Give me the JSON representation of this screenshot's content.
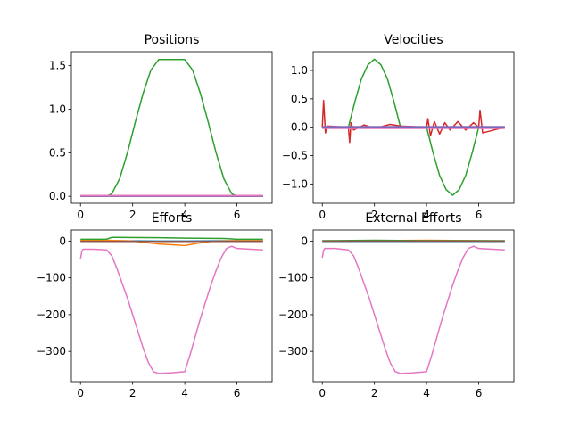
{
  "palette": [
    "#1f77b4",
    "#ff7f0e",
    "#2ca02c",
    "#d62728",
    "#9467bd",
    "#8c564b",
    "#e377c2"
  ],
  "chart_data": [
    {
      "type": "line",
      "title": "Positions",
      "xlim": [
        -0.35,
        7.35
      ],
      "ylim": [
        -0.08,
        1.66
      ],
      "xticks": [
        0,
        2,
        4,
        6
      ],
      "yticks": [
        0.0,
        0.5,
        1.0,
        1.5
      ],
      "ytick_labels": [
        "0.0",
        "0.5",
        "1.0",
        "1.5"
      ],
      "grid": false,
      "series": [
        {
          "color_index": 2,
          "x": [
            0,
            1.0,
            1.2,
            1.5,
            1.8,
            2.1,
            2.4,
            2.7,
            3.0,
            3.3,
            4.0,
            4.3,
            4.6,
            4.9,
            5.2,
            5.5,
            5.8,
            6.0,
            7.0
          ],
          "y": [
            0.0,
            0.0,
            0.03,
            0.2,
            0.5,
            0.85,
            1.18,
            1.45,
            1.57,
            1.57,
            1.57,
            1.45,
            1.18,
            0.85,
            0.5,
            0.2,
            0.03,
            0.0,
            0.0
          ]
        },
        {
          "color_index": 0,
          "x": [
            0,
            7
          ],
          "y": [
            0.005,
            0.005
          ]
        },
        {
          "color_index": 1,
          "x": [
            0,
            7
          ],
          "y": [
            0.0,
            0.0
          ]
        },
        {
          "color_index": 4,
          "x": [
            0,
            7
          ],
          "y": [
            0.0,
            0.0
          ]
        },
        {
          "color_index": 6,
          "x": [
            0,
            7
          ],
          "y": [
            0.01,
            0.01
          ]
        }
      ]
    },
    {
      "type": "line",
      "title": "Velocities",
      "xlim": [
        -0.35,
        7.35
      ],
      "ylim": [
        -1.34,
        1.33
      ],
      "xticks": [
        0,
        2,
        4,
        6
      ],
      "yticks": [
        1.0,
        0.5,
        0.0,
        -0.5,
        -1.0
      ],
      "ytick_labels": [
        "1.0",
        "0.5",
        "0.0",
        "−0.5",
        "−1.0"
      ],
      "grid": false,
      "series": [
        {
          "color_index": 2,
          "x": [
            0,
            1.0,
            1.25,
            1.5,
            1.75,
            2.0,
            2.25,
            2.5,
            2.75,
            3.0,
            4.0,
            4.25,
            4.5,
            4.75,
            5.0,
            5.25,
            5.5,
            5.75,
            6.0,
            7.0
          ],
          "y": [
            0.0,
            0.0,
            0.45,
            0.85,
            1.1,
            1.2,
            1.1,
            0.85,
            0.45,
            0.0,
            0.0,
            -0.45,
            -0.85,
            -1.1,
            -1.2,
            -1.1,
            -0.85,
            -0.45,
            0.0,
            0.0
          ]
        },
        {
          "color_index": 3,
          "x": [
            0,
            0.05,
            0.12,
            0.2,
            1.0,
            1.05,
            1.1,
            1.2,
            1.6,
            2.0,
            2.6,
            3.0,
            4.0,
            4.05,
            4.15,
            4.3,
            4.5,
            4.7,
            4.9,
            5.2,
            5.5,
            5.8,
            6.0,
            6.05,
            6.15,
            7.0
          ],
          "y": [
            0.0,
            0.47,
            -0.1,
            0.02,
            0.0,
            -0.27,
            0.08,
            -0.05,
            0.04,
            -0.02,
            0.05,
            0.02,
            0.0,
            0.15,
            -0.15,
            0.1,
            -0.12,
            0.08,
            -0.05,
            0.1,
            -0.05,
            0.08,
            0.0,
            0.3,
            -0.1,
            0.0
          ]
        },
        {
          "color_index": 0,
          "x": [
            0,
            7
          ],
          "y": [
            0.0,
            0.0
          ]
        },
        {
          "color_index": 6,
          "x": [
            0,
            7
          ],
          "y": [
            -0.02,
            -0.02
          ]
        },
        {
          "color_index": 4,
          "x": [
            0,
            7
          ],
          "y": [
            0.01,
            0.01
          ]
        }
      ]
    },
    {
      "type": "line",
      "title": "Efforts",
      "xlim": [
        -0.35,
        7.35
      ],
      "ylim": [
        -382,
        30
      ],
      "xticks": [
        0,
        2,
        4,
        6
      ],
      "yticks": [
        0,
        -100,
        -200,
        -300
      ],
      "ytick_labels": [
        "0",
        "−100",
        "−200",
        "−300"
      ],
      "grid": false,
      "series": [
        {
          "color_index": 0,
          "x": [
            0,
            1.0,
            3.0,
            4.0,
            6.0,
            7.0
          ],
          "y": [
            1,
            1,
            0,
            0,
            1,
            1
          ]
        },
        {
          "color_index": 1,
          "x": [
            0,
            1.0,
            2.0,
            2.5,
            3.0,
            3.5,
            4.0,
            4.5,
            5.0,
            6.0,
            7.0
          ],
          "y": [
            2,
            2,
            0,
            -4,
            -8,
            -10,
            -12,
            -6,
            -1,
            1,
            1
          ]
        },
        {
          "color_index": 2,
          "x": [
            0,
            1.0,
            1.2,
            3.0,
            4.0,
            5.5,
            6.0,
            7.0
          ],
          "y": [
            5,
            5,
            10,
            9,
            8,
            7,
            5,
            5
          ]
        },
        {
          "color_index": 5,
          "x": [
            0,
            7
          ],
          "y": [
            -1,
            -1
          ]
        },
        {
          "color_index": 6,
          "x": [
            0,
            0.05,
            0.1,
            0.5,
            1.0,
            1.2,
            1.4,
            1.6,
            1.8,
            2.0,
            2.2,
            2.4,
            2.6,
            2.8,
            3.0,
            3.5,
            4.0,
            4.2,
            4.4,
            4.6,
            4.8,
            5.0,
            5.2,
            5.4,
            5.6,
            5.8,
            6.0,
            7.0
          ],
          "y": [
            -48,
            -28,
            -22,
            -22,
            -24,
            -40,
            -75,
            -115,
            -155,
            -200,
            -245,
            -290,
            -330,
            -355,
            -360,
            -358,
            -355,
            -310,
            -260,
            -210,
            -165,
            -120,
            -80,
            -45,
            -20,
            -14,
            -20,
            -24
          ]
        }
      ]
    },
    {
      "type": "line",
      "title": "External Efforts",
      "xlim": [
        -0.35,
        7.35
      ],
      "ylim": [
        -382,
        30
      ],
      "xticks": [
        0,
        2,
        4,
        6
      ],
      "yticks": [
        0,
        -100,
        -200,
        -300
      ],
      "ytick_labels": [
        "0",
        "−100",
        "−200",
        "−300"
      ],
      "grid": false,
      "series": [
        {
          "color_index": 0,
          "x": [
            0,
            7
          ],
          "y": [
            -1,
            -1
          ]
        },
        {
          "color_index": 1,
          "x": [
            0,
            2.0,
            4.0,
            6.0,
            7.0
          ],
          "y": [
            0,
            1,
            2,
            1,
            0
          ]
        },
        {
          "color_index": 2,
          "x": [
            0,
            2.0,
            4.0,
            7.0
          ],
          "y": [
            1,
            2,
            1,
            1
          ]
        },
        {
          "color_index": 5,
          "x": [
            0,
            7
          ],
          "y": [
            0,
            0
          ]
        },
        {
          "color_index": 6,
          "x": [
            0,
            0.05,
            0.1,
            0.5,
            1.0,
            1.2,
            1.4,
            1.6,
            1.8,
            2.0,
            2.2,
            2.4,
            2.6,
            2.8,
            3.0,
            3.5,
            4.0,
            4.2,
            4.4,
            4.6,
            4.8,
            5.0,
            5.2,
            5.4,
            5.6,
            5.8,
            6.0,
            7.0
          ],
          "y": [
            -45,
            -25,
            -20,
            -20,
            -24,
            -40,
            -75,
            -115,
            -155,
            -200,
            -245,
            -290,
            -330,
            -355,
            -360,
            -358,
            -355,
            -310,
            -260,
            -210,
            -165,
            -120,
            -80,
            -45,
            -20,
            -14,
            -20,
            -24
          ]
        }
      ]
    }
  ]
}
